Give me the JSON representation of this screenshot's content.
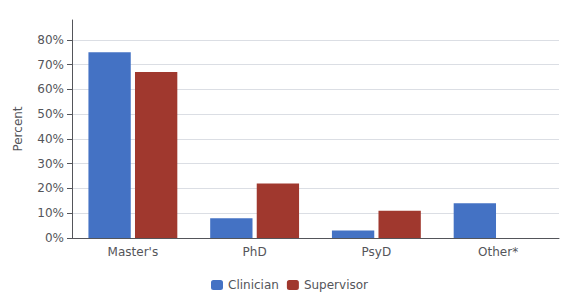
{
  "chart_data": {
    "type": "bar",
    "categories": [
      "Master's",
      "PhD",
      "PsyD",
      "Other*"
    ],
    "series": [
      {
        "name": "Clinician",
        "color": "#4472C4",
        "values": [
          0.75,
          0.08,
          0.03,
          0.14
        ]
      },
      {
        "name": "Supervisor",
        "color": "#A0382E",
        "values": [
          0.67,
          0.22,
          0.11,
          0
        ]
      }
    ],
    "ylabel": "Percent",
    "ylim": [
      0,
      0.88
    ],
    "yticks": [
      {
        "value": 0,
        "label": "0%"
      },
      {
        "value": 0.1,
        "label": "10%"
      },
      {
        "value": 0.2,
        "label": "20%"
      },
      {
        "value": 0.3,
        "label": "30%"
      },
      {
        "value": 0.4,
        "label": "40%"
      },
      {
        "value": 0.5,
        "label": "50%"
      },
      {
        "value": 0.6,
        "label": "60%"
      },
      {
        "value": 0.7,
        "label": "70%"
      },
      {
        "value": 0.8,
        "label": "80%"
      }
    ],
    "grid": true,
    "legend": "bottom"
  }
}
